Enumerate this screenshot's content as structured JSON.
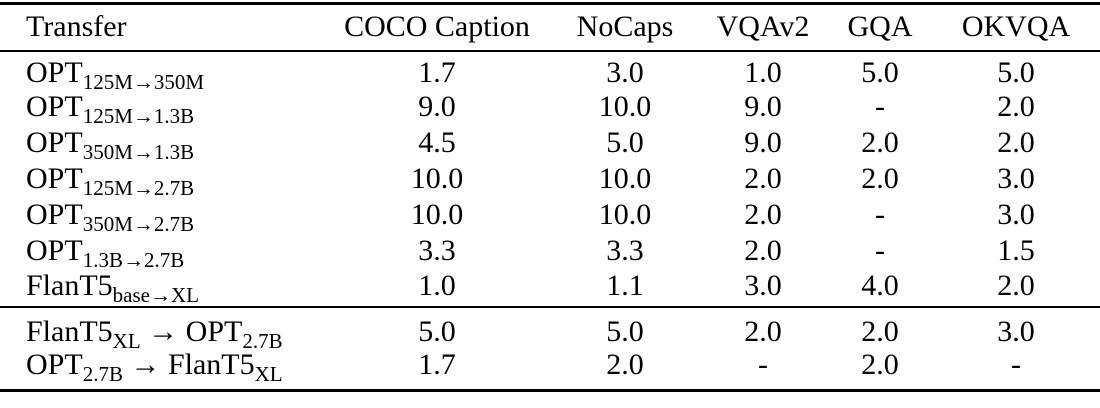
{
  "page": {
    "background": "#ffffff",
    "text_color": "#000000",
    "rule_color": "#000000"
  },
  "table": {
    "columns": [
      "Transfer",
      "COCO Caption",
      "NoCaps",
      "VQAv2",
      "GQA",
      "OKVQA"
    ],
    "sections": [
      {
        "name": "same-family-transfers",
        "rows": [
          {
            "label_parts": [
              {
                "text": "OPT"
              },
              {
                "text": "125M→350M",
                "sub": true
              }
            ],
            "values": [
              "1.7",
              "3.0",
              "1.0",
              "5.0",
              "5.0"
            ]
          },
          {
            "label_parts": [
              {
                "text": "OPT"
              },
              {
                "text": "125M→1.3B",
                "sub": true
              }
            ],
            "values": [
              "9.0",
              "10.0",
              "9.0",
              "-",
              "2.0"
            ]
          },
          {
            "label_parts": [
              {
                "text": "OPT"
              },
              {
                "text": "350M→1.3B",
                "sub": true
              }
            ],
            "values": [
              "4.5",
              "5.0",
              "9.0",
              "2.0",
              "2.0"
            ]
          },
          {
            "label_parts": [
              {
                "text": "OPT"
              },
              {
                "text": "125M→2.7B",
                "sub": true
              }
            ],
            "values": [
              "10.0",
              "10.0",
              "2.0",
              "2.0",
              "3.0"
            ]
          },
          {
            "label_parts": [
              {
                "text": "OPT"
              },
              {
                "text": "350M→2.7B",
                "sub": true
              }
            ],
            "values": [
              "10.0",
              "10.0",
              "2.0",
              "-",
              "3.0"
            ]
          },
          {
            "label_parts": [
              {
                "text": "OPT"
              },
              {
                "text": "1.3B→2.7B",
                "sub": true
              }
            ],
            "values": [
              "3.3",
              "3.3",
              "2.0",
              "-",
              "1.5"
            ]
          },
          {
            "label_parts": [
              {
                "text": "FlanT5"
              },
              {
                "text": "base→XL",
                "sub": true
              }
            ],
            "values": [
              "1.0",
              "1.1",
              "3.0",
              "4.0",
              "2.0"
            ]
          }
        ]
      },
      {
        "name": "cross-family-transfers",
        "rows": [
          {
            "label_parts": [
              {
                "text": "FlanT5"
              },
              {
                "text": "XL",
                "sub": true
              },
              {
                "text": " → "
              },
              {
                "text": "OPT"
              },
              {
                "text": "2.7B",
                "sub": true
              }
            ],
            "values": [
              "5.0",
              "5.0",
              "2.0",
              "2.0",
              "3.0"
            ]
          },
          {
            "label_parts": [
              {
                "text": "OPT"
              },
              {
                "text": "2.7B",
                "sub": true
              },
              {
                "text": " → "
              },
              {
                "text": "FlanT5"
              },
              {
                "text": "XL",
                "sub": true
              }
            ],
            "values": [
              "1.7",
              "2.0",
              "-",
              "2.0",
              "-"
            ]
          }
        ]
      }
    ]
  }
}
